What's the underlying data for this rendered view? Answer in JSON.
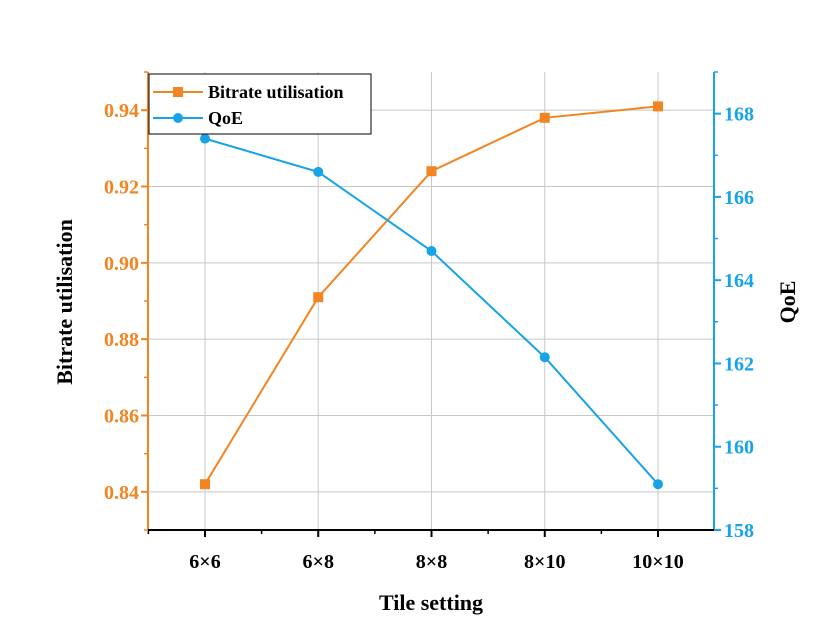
{
  "chart_data": {
    "type": "line",
    "xlabel": "Tile setting",
    "ylabel_left": "Bitrate utilisation",
    "ylabel_right": "QoE",
    "categories": [
      "6×6",
      "6×8",
      "8×8",
      "8×10",
      "10×10"
    ],
    "y_left": {
      "lim": [
        0.83,
        0.95
      ],
      "ticks": [
        "0.84",
        "0.86",
        "0.88",
        "0.90",
        "0.92",
        "0.94"
      ],
      "color": "#f28522"
    },
    "y_right": {
      "lim": [
        158,
        169
      ],
      "ticks": [
        "158",
        "160",
        "162",
        "164",
        "166",
        "168"
      ],
      "color": "#17a3e8"
    },
    "grid": true,
    "legend_position": "top-left",
    "series": [
      {
        "name": "Bitrate utilisation",
        "axis": "left",
        "marker": "square",
        "color": "#f28522",
        "values": [
          0.842,
          0.891,
          0.924,
          0.938,
          0.941
        ]
      },
      {
        "name": "QoE",
        "axis": "right",
        "marker": "circle",
        "color": "#17a3e8",
        "values": [
          167.4,
          166.6,
          164.7,
          162.15,
          159.1
        ]
      }
    ]
  }
}
